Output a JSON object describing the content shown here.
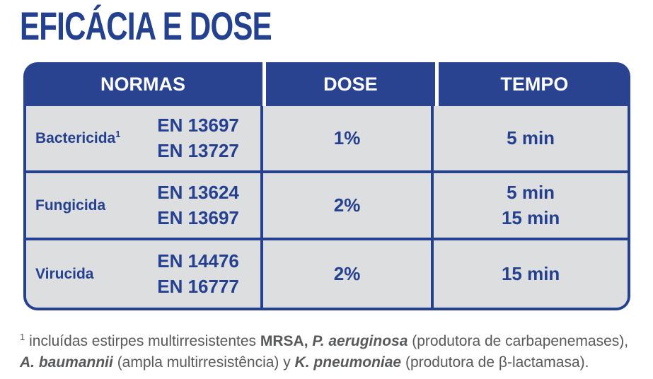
{
  "title": "EFICÁCIA E DOSE",
  "colors": {
    "accent_blue": "#2A4390",
    "border_blue": "#24408E",
    "cell_gray": "#DDDEE0",
    "footnote_gray": "#58595B"
  },
  "table": {
    "headers": [
      "NORMAS",
      "DOSE",
      "TEMPO"
    ],
    "rows": [
      {
        "label": "Bactericida",
        "label_sup": "1",
        "norms": [
          "EN 13697",
          "EN 13727"
        ],
        "dose": "1%",
        "tempo": [
          "5 min"
        ]
      },
      {
        "label": "Fungicida",
        "label_sup": "",
        "norms": [
          "EN 13624",
          "EN 13697"
        ],
        "dose": "2%",
        "tempo": [
          "5 min",
          "15 min"
        ]
      },
      {
        "label": "Virucida",
        "label_sup": "",
        "norms": [
          "EN 14476",
          "EN 16777"
        ],
        "dose": "2%",
        "tempo": [
          "15 min"
        ]
      }
    ]
  },
  "footnote": {
    "marker": "1",
    "segments": [
      {
        "t": "incluídas estirpes multirresistentes "
      },
      {
        "t": "MRSA,"
      },
      {
        "t": " "
      },
      {
        "t": "P. aeruginosa"
      },
      {
        "t": " (produtora de carbapenemases),"
      },
      {
        "t": "A. baumannii"
      },
      {
        "t": " (ampla multirresistência) y "
      },
      {
        "t": "K. pneumoniae"
      },
      {
        "t": " (produtora de β-lactamasa)."
      }
    ]
  }
}
